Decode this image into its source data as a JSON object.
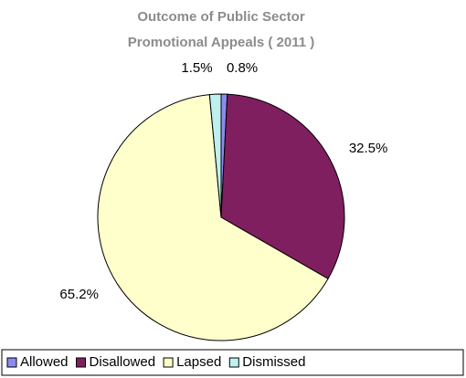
{
  "chart_data": {
    "type": "pie",
    "title": [
      "Outcome of Public Sector",
      "Promotional Appeals ( 2011 )"
    ],
    "categories": [
      "Allowed",
      "Disallowed",
      "Lapsed",
      "Dismissed"
    ],
    "values": [
      0.8,
      32.5,
      65.2,
      1.5
    ],
    "value_labels": [
      "0.8%",
      "32.5%",
      "65.2%",
      "1.5%"
    ],
    "colors": [
      "#8c8cf0",
      "#801f5f",
      "#ffffcc",
      "#bff0f0"
    ],
    "legend": "bottom"
  }
}
